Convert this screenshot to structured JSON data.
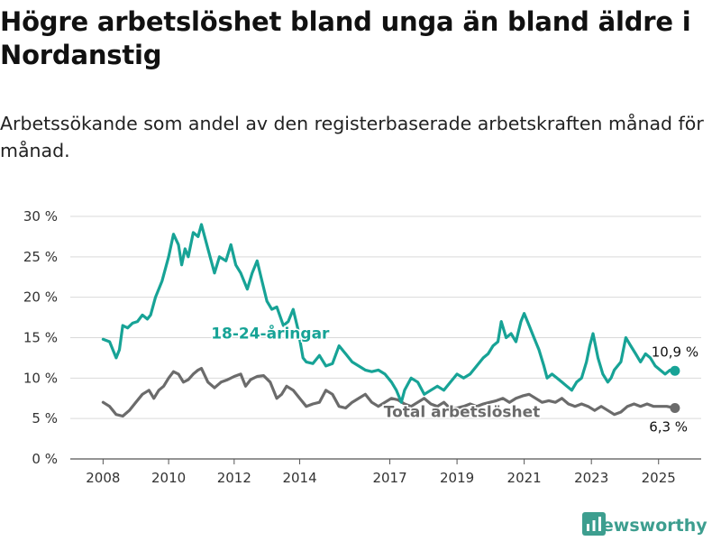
{
  "header": {
    "title": "Högre arbetslöshet bland unga än bland äldre i Nordanstig",
    "subtitle": "Arbetssökande som andel av den registerbaserade arbetskraften månad för månad."
  },
  "brand": {
    "name": "Newsworthy",
    "color": "#3d9e8f"
  },
  "chart_data": {
    "type": "line",
    "title": "Högre arbetslöshet bland unga än bland äldre i Nordanstig",
    "subtitle": "Arbetssökande som andel av den registerbaserade arbetskraften månad för månad.",
    "x_tick_labels": [
      "2008",
      "2010",
      "2012",
      "2014",
      "2017",
      "2019",
      "2021",
      "2023",
      "2025"
    ],
    "x_ticks": [
      2008,
      2010,
      2012,
      2014,
      2016.75,
      2018.8,
      2020.85,
      2022.9,
      2024.95
    ],
    "y_tick_labels": [
      "0 %",
      "5 %",
      "10 %",
      "15 %",
      "20 %",
      "25 %",
      "30 %"
    ],
    "y_ticks": [
      0,
      5,
      10,
      15,
      20,
      25,
      30
    ],
    "ylim": [
      0,
      30
    ],
    "xlim": [
      2007.0,
      2026.25
    ],
    "grid": true,
    "series": [
      {
        "name": "18-24-åringar",
        "color": "#17a396",
        "end_label": "10,9 %",
        "x": [
          2008.0,
          2008.2,
          2008.4,
          2008.5,
          2008.6,
          2008.75,
          2008.9,
          2009.05,
          2009.2,
          2009.35,
          2009.45,
          2009.6,
          2009.8,
          2010.0,
          2010.15,
          2010.3,
          2010.4,
          2010.5,
          2010.6,
          2010.75,
          2010.9,
          2011.0,
          2011.2,
          2011.4,
          2011.55,
          2011.75,
          2011.9,
          2012.05,
          2012.2,
          2012.4,
          2012.55,
          2012.7,
          2012.85,
          2013.0,
          2013.15,
          2013.3,
          2013.5,
          2013.65,
          2013.8,
          2013.95,
          2014.1,
          2014.2,
          2014.4,
          2014.6,
          2014.8,
          2015.0,
          2015.2,
          2015.4,
          2015.6,
          2015.8,
          2016.0,
          2016.2,
          2016.4,
          2016.6,
          2016.8,
          2016.95,
          2017.1,
          2017.2,
          2017.4,
          2017.6,
          2017.8,
          2018.0,
          2018.2,
          2018.4,
          2018.6,
          2018.8,
          2019.0,
          2019.2,
          2019.4,
          2019.6,
          2019.75,
          2019.9,
          2020.05,
          2020.15,
          2020.3,
          2020.45,
          2020.6,
          2020.75,
          2020.85,
          2021.0,
          2021.15,
          2021.3,
          2021.45,
          2021.55,
          2021.7,
          2021.85,
          2022.0,
          2022.15,
          2022.3,
          2022.45,
          2022.6,
          2022.75,
          2022.85,
          2022.95,
          2023.1,
          2023.25,
          2023.4,
          2023.5,
          2023.6,
          2023.8,
          2023.95,
          2024.1,
          2024.25,
          2024.4,
          2024.55,
          2024.7,
          2024.85,
          2025.0,
          2025.15,
          2025.3,
          2025.45
        ],
        "values": [
          14.8,
          14.5,
          12.5,
          13.5,
          16.5,
          16.2,
          16.8,
          17.0,
          17.8,
          17.3,
          17.8,
          20.0,
          22.0,
          25.0,
          27.8,
          26.5,
          24.0,
          26.0,
          25.0,
          28.0,
          27.5,
          29.0,
          26.0,
          23.0,
          25.0,
          24.5,
          26.5,
          24.0,
          23.0,
          21.0,
          23.0,
          24.5,
          22.0,
          19.5,
          18.5,
          18.8,
          16.5,
          17.0,
          18.5,
          16.0,
          12.5,
          12.0,
          11.8,
          12.8,
          11.5,
          11.8,
          14.0,
          13.0,
          12.0,
          11.5,
          11.0,
          10.8,
          11.0,
          10.5,
          9.5,
          8.5,
          7.0,
          8.5,
          10.0,
          9.5,
          8.0,
          8.5,
          9.0,
          8.5,
          9.5,
          10.5,
          10.0,
          10.5,
          11.5,
          12.5,
          13.0,
          14.0,
          14.5,
          17.0,
          15.0,
          15.5,
          14.5,
          17.0,
          18.0,
          16.5,
          15.0,
          13.5,
          11.5,
          10.0,
          10.5,
          10.0,
          9.5,
          9.0,
          8.5,
          9.5,
          10.0,
          12.0,
          14.0,
          15.5,
          12.5,
          10.5,
          9.5,
          10.0,
          11.0,
          12.0,
          15.0,
          14.0,
          13.0,
          12.0,
          13.0,
          12.5,
          11.5,
          11.0,
          10.5,
          11.0,
          10.9
        ]
      },
      {
        "name": "Total arbetslöshet",
        "color": "#6b6b6b",
        "end_label": "6,3 %",
        "x": [
          2008.0,
          2008.2,
          2008.4,
          2008.6,
          2008.8,
          2009.0,
          2009.2,
          2009.4,
          2009.55,
          2009.7,
          2009.85,
          2010.0,
          2010.15,
          2010.3,
          2010.45,
          2010.6,
          2010.75,
          2010.9,
          2011.0,
          2011.2,
          2011.4,
          2011.6,
          2011.8,
          2012.0,
          2012.2,
          2012.35,
          2012.5,
          2012.7,
          2012.9,
          2013.1,
          2013.3,
          2013.45,
          2013.6,
          2013.8,
          2014.0,
          2014.2,
          2014.4,
          2014.6,
          2014.8,
          2015.0,
          2015.2,
          2015.4,
          2015.6,
          2015.8,
          2016.0,
          2016.2,
          2016.4,
          2016.6,
          2016.8,
          2017.0,
          2017.2,
          2017.4,
          2017.6,
          2017.8,
          2018.0,
          2018.2,
          2018.4,
          2018.6,
          2018.8,
          2019.0,
          2019.2,
          2019.4,
          2019.6,
          2019.8,
          2020.0,
          2020.2,
          2020.4,
          2020.6,
          2020.8,
          2021.0,
          2021.2,
          2021.4,
          2021.6,
          2021.8,
          2022.0,
          2022.2,
          2022.4,
          2022.6,
          2022.8,
          2023.0,
          2023.2,
          2023.4,
          2023.6,
          2023.8,
          2024.0,
          2024.2,
          2024.4,
          2024.6,
          2024.8,
          2025.0,
          2025.2,
          2025.45
        ],
        "values": [
          7.0,
          6.5,
          5.5,
          5.3,
          6.0,
          7.0,
          8.0,
          8.5,
          7.5,
          8.5,
          9.0,
          10.0,
          10.8,
          10.5,
          9.5,
          9.8,
          10.5,
          11.0,
          11.2,
          9.5,
          8.8,
          9.5,
          9.8,
          10.2,
          10.5,
          9.0,
          9.8,
          10.2,
          10.3,
          9.5,
          7.5,
          8.0,
          9.0,
          8.5,
          7.5,
          6.5,
          6.8,
          7.0,
          8.5,
          8.0,
          6.5,
          6.3,
          7.0,
          7.5,
          8.0,
          7.0,
          6.5,
          7.0,
          7.5,
          7.3,
          6.8,
          6.5,
          7.0,
          7.5,
          6.8,
          6.5,
          7.0,
          6.2,
          6.3,
          6.5,
          6.8,
          6.5,
          6.8,
          7.0,
          7.2,
          7.5,
          7.0,
          7.5,
          7.8,
          8.0,
          7.5,
          7.0,
          7.2,
          7.0,
          7.5,
          6.8,
          6.5,
          6.8,
          6.5,
          6.0,
          6.5,
          6.0,
          5.5,
          5.8,
          6.5,
          6.8,
          6.5,
          6.8,
          6.5,
          6.5,
          6.5,
          6.3
        ]
      }
    ]
  }
}
